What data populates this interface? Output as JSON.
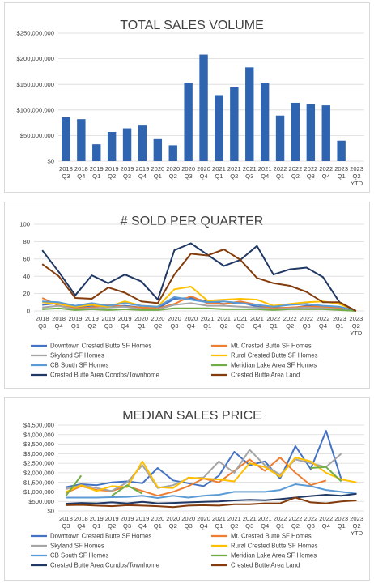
{
  "charts": [
    {
      "title": "TOTAL SALES VOLUME",
      "y_ticks": [
        "$0",
        "$50,000,000",
        "$100,000,000",
        "$150,000,000",
        "$200,000,000",
        "$250,000,000"
      ]
    },
    {
      "title": "# SOLD PER QUARTER",
      "y_ticks": [
        "0",
        "20",
        "40",
        "60",
        "80",
        "100"
      ]
    },
    {
      "title": "MEDIAN SALES PRICE",
      "y_ticks": [
        "$0",
        "$500,000",
        "$1,000,000",
        "$1,500,000",
        "$2,000,000",
        "$2,500,000",
        "$3,000,000",
        "$3,500,000",
        "$4,000,000",
        "$4,500,000"
      ]
    }
  ],
  "chart_data": [
    {
      "type": "bar",
      "title": "TOTAL SALES VOLUME",
      "categories": [
        [
          "2018",
          "Q3"
        ],
        [
          "2018",
          "Q4"
        ],
        [
          "2019",
          "Q1"
        ],
        [
          "2019",
          "Q2"
        ],
        [
          "2019",
          "Q3"
        ],
        [
          "2019",
          "Q4"
        ],
        [
          "2020",
          "Q1"
        ],
        [
          "2020",
          "Q2"
        ],
        [
          "2020",
          "Q3"
        ],
        [
          "2020",
          "Q4"
        ],
        [
          "2021",
          "Q1"
        ],
        [
          "2021",
          "Q2"
        ],
        [
          "2021",
          "Q3"
        ],
        [
          "2021",
          "Q4"
        ],
        [
          "2022",
          "Q1"
        ],
        [
          "2022",
          "Q2"
        ],
        [
          "2022",
          "Q3"
        ],
        [
          "2022",
          "Q4"
        ],
        [
          "2023",
          "Q1"
        ],
        [
          "2023",
          "Q2",
          "YTD"
        ]
      ],
      "values": [
        86000000,
        82000000,
        33000000,
        57000000,
        64000000,
        71000000,
        43000000,
        31000000,
        153000000,
        208000000,
        129000000,
        144000000,
        183000000,
        152000000,
        89000000,
        114000000,
        112000000,
        109000000,
        40000000,
        0
      ],
      "ylim": [
        0,
        250000000
      ],
      "color": "#2e64b0",
      "grid": true
    },
    {
      "type": "line",
      "title": "# SOLD PER QUARTER",
      "categories": [
        [
          "2018",
          "Q3"
        ],
        [
          "2018",
          "Q4"
        ],
        [
          "2019",
          "Q1"
        ],
        [
          "2019",
          "Q2"
        ],
        [
          "2019",
          "Q3"
        ],
        [
          "2019",
          "Q4"
        ],
        [
          "2020",
          "Q1"
        ],
        [
          "2020",
          "Q2"
        ],
        [
          "2020",
          "Q3"
        ],
        [
          "2020",
          "Q4"
        ],
        [
          "2021",
          "Q1"
        ],
        [
          "2021",
          "Q2"
        ],
        [
          "2021",
          "Q3"
        ],
        [
          "2021",
          "Q4"
        ],
        [
          "2022",
          "Q1"
        ],
        [
          "2022",
          "Q2"
        ],
        [
          "2022",
          "Q3"
        ],
        [
          "2022",
          "Q4"
        ],
        [
          "2023",
          "Q1"
        ],
        [
          "2023",
          "Q2",
          "YTD"
        ]
      ],
      "ylim": [
        0,
        100
      ],
      "grid": true,
      "legend_position": "bottom",
      "series": [
        {
          "name": "Downtown Crested Butte SF Homes",
          "color": "#4472c4",
          "values": [
            7,
            9,
            4,
            6,
            5,
            6,
            4,
            3,
            14,
            15,
            11,
            8,
            10,
            5,
            4,
            3,
            6,
            5,
            4,
            0
          ]
        },
        {
          "name": "Mt. Crested Butte SF Homes",
          "color": "#ed7d31",
          "values": [
            15,
            6,
            3,
            4,
            7,
            5,
            4,
            3,
            8,
            17,
            9,
            8,
            11,
            7,
            3,
            4,
            5,
            5,
            3,
            0
          ]
        },
        {
          "name": "Skyland SF Homes",
          "color": "#a5a5a5",
          "values": [
            4,
            6,
            2,
            3,
            4,
            5,
            2,
            2,
            7,
            9,
            6,
            6,
            5,
            4,
            2,
            3,
            4,
            3,
            2,
            0
          ]
        },
        {
          "name": "Rural Crested Butte SF Homes",
          "color": "#ffc000",
          "values": [
            10,
            8,
            5,
            7,
            5,
            11,
            6,
            5,
            25,
            28,
            12,
            13,
            14,
            13,
            6,
            8,
            10,
            11,
            8,
            0
          ]
        },
        {
          "name": "CB South SF Homes",
          "color": "#5b9bd5",
          "values": [
            11,
            10,
            6,
            9,
            6,
            9,
            6,
            5,
            16,
            13,
            10,
            11,
            9,
            7,
            5,
            7,
            8,
            6,
            5,
            0
          ]
        },
        {
          "name": "Meridian Lake Area SF Homes",
          "color": "#70ad47",
          "values": [
            2,
            3,
            1,
            2,
            1,
            2,
            1,
            1,
            3,
            3,
            3,
            2,
            2,
            2,
            1,
            2,
            2,
            2,
            1,
            0
          ]
        },
        {
          "name": "Crested Butte Area Condos/Townhome",
          "color": "#203864",
          "values": [
            70,
            45,
            18,
            41,
            32,
            42,
            34,
            13,
            70,
            78,
            65,
            52,
            59,
            75,
            42,
            48,
            50,
            39,
            10,
            0
          ]
        },
        {
          "name": "Crested Butte Area Land",
          "color": "#843c0c",
          "values": [
            54,
            40,
            15,
            14,
            27,
            21,
            11,
            9,
            42,
            66,
            64,
            71,
            59,
            38,
            32,
            29,
            22,
            10,
            10,
            0
          ]
        }
      ]
    },
    {
      "type": "line",
      "title": "MEDIAN SALES PRICE",
      "categories": [
        [
          "2018",
          "Q3"
        ],
        [
          "2018",
          "Q4"
        ],
        [
          "2019",
          "Q1"
        ],
        [
          "2019",
          "Q2"
        ],
        [
          "2019",
          "Q3"
        ],
        [
          "2019",
          "Q4"
        ],
        [
          "2020",
          "Q1"
        ],
        [
          "2020",
          "Q2"
        ],
        [
          "2020",
          "Q3"
        ],
        [
          "2020",
          "Q4"
        ],
        [
          "2021",
          "Q1"
        ],
        [
          "2021",
          "Q2"
        ],
        [
          "2021",
          "Q3"
        ],
        [
          "2021",
          "Q4"
        ],
        [
          "2022",
          "Q1"
        ],
        [
          "2022",
          "Q2"
        ],
        [
          "2022",
          "Q3"
        ],
        [
          "2022",
          "Q4"
        ],
        [
          "2023",
          "Q1"
        ],
        [
          "2023",
          "Q2",
          "YTD"
        ]
      ],
      "ylim": [
        0,
        4500000
      ],
      "grid": true,
      "legend_position": "bottom",
      "series": [
        {
          "name": "Downtown Crested Butte SF Homes",
          "color": "#4472c4",
          "values": [
            1250000,
            1400000,
            1350000,
            1500000,
            1550000,
            1450000,
            2250000,
            1600000,
            1450000,
            1300000,
            1850000,
            3100000,
            2400000,
            2600000,
            1700000,
            3400000,
            2200000,
            4200000,
            1650000,
            null
          ]
        },
        {
          "name": "Mt. Crested Butte SF Homes",
          "color": "#ed7d31",
          "values": [
            950000,
            1300000,
            1100000,
            1050000,
            1300000,
            1050000,
            800000,
            1000000,
            1300000,
            1700000,
            1500000,
            2100000,
            2700000,
            2100000,
            2800000,
            2000000,
            1350000,
            1600000,
            null,
            null
          ]
        },
        {
          "name": "Skyland SF Homes",
          "color": "#a5a5a5",
          "values": [
            1150000,
            1350000,
            1200000,
            1050000,
            1500000,
            2400000,
            1200000,
            1350000,
            1700000,
            1750000,
            2600000,
            2000000,
            3200000,
            2400000,
            1900000,
            2700000,
            2500000,
            2300000,
            3000000,
            null
          ]
        },
        {
          "name": "Rural Crested Butte SF Homes",
          "color": "#ffc000",
          "values": [
            1000000,
            1350000,
            1050000,
            1300000,
            1250000,
            2600000,
            1250000,
            1200000,
            1750000,
            1700000,
            1650000,
            1550000,
            2500000,
            2300000,
            1800000,
            2800000,
            2600000,
            2000000,
            1650000,
            1500000
          ]
        },
        {
          "name": "CB South SF Homes",
          "color": "#5b9bd5",
          "values": [
            700000,
            700000,
            700000,
            720000,
            740000,
            800000,
            680000,
            800000,
            700000,
            800000,
            850000,
            1000000,
            1000000,
            1000000,
            1100000,
            1400000,
            1300000,
            1100000,
            1000000,
            900000
          ]
        },
        {
          "name": "Meridian Lake Area SF Homes",
          "color": "#70ad47",
          "values": [
            800000,
            1850000,
            null,
            800000,
            1350000,
            900000,
            null,
            null,
            null,
            null,
            null,
            null,
            null,
            null,
            null,
            null,
            2250000,
            2300000,
            1550000,
            null
          ]
        },
        {
          "name": "Crested Butte Area Condos/Townhome",
          "color": "#203864",
          "values": [
            380000,
            420000,
            400000,
            450000,
            400000,
            480000,
            400000,
            420000,
            450000,
            480000,
            500000,
            550000,
            580000,
            560000,
            620000,
            700000,
            780000,
            850000,
            800000,
            900000
          ]
        },
        {
          "name": "Crested Butte Area Land",
          "color": "#843c0c",
          "values": [
            300000,
            320000,
            280000,
            250000,
            300000,
            280000,
            250000,
            200000,
            280000,
            300000,
            280000,
            350000,
            350000,
            400000,
            400000,
            700000,
            450000,
            400000,
            500000,
            550000
          ]
        }
      ]
    }
  ]
}
